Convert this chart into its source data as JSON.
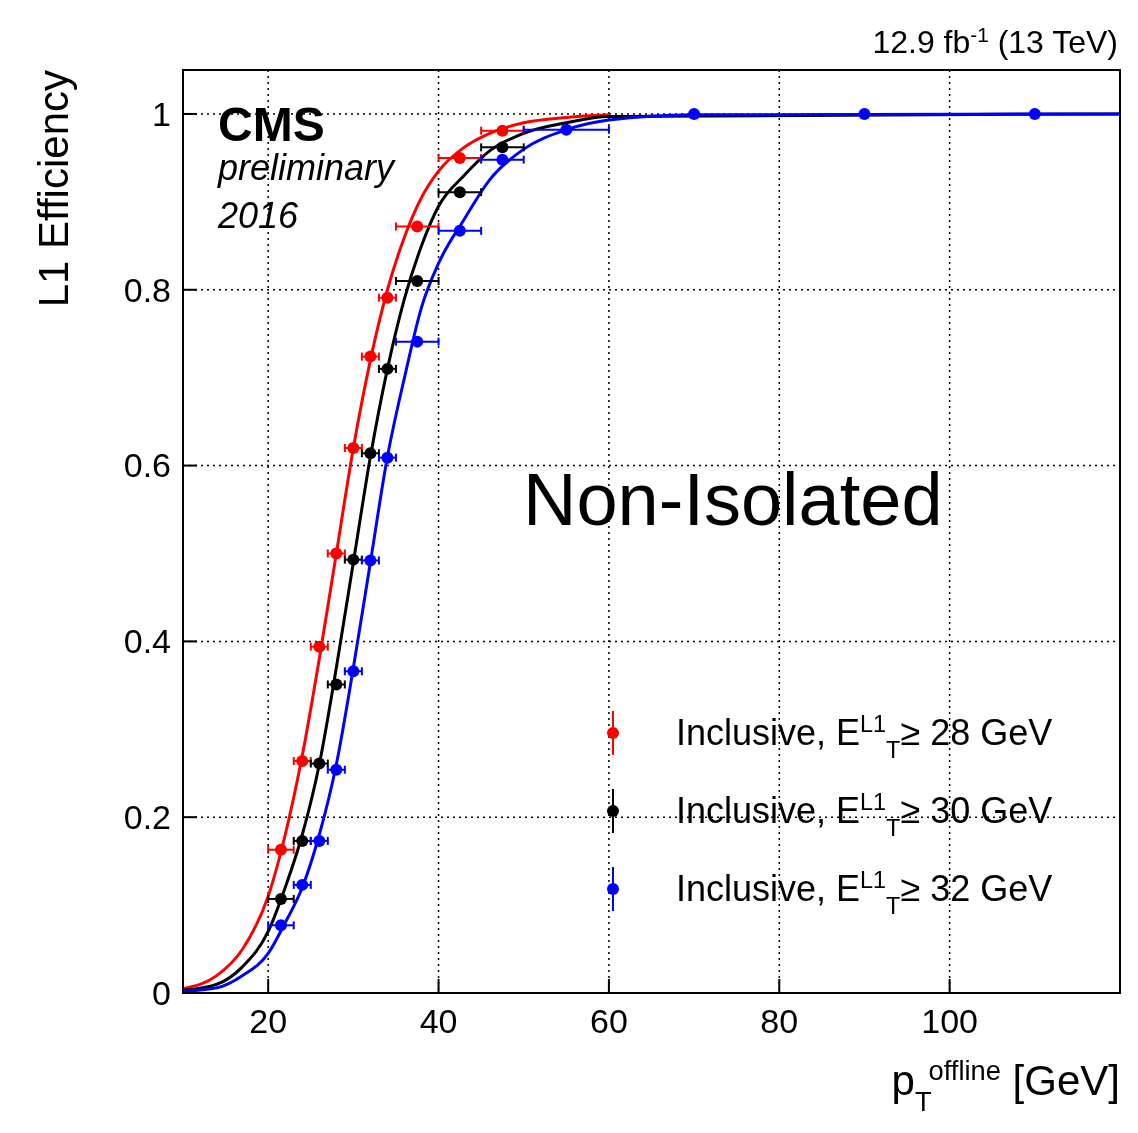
{
  "chart_data": {
    "type": "scatter",
    "title": "12.9 fb$^{-1}$ (13 TeV)",
    "xlabel": "p$_{T}$$^{offline}$ [GeV]",
    "ylabel": "L1 Efficiency",
    "annotations": [
      "CMS",
      "preliminary",
      "2016",
      "Non-Isolated"
    ],
    "xlim": [
      10,
      120
    ],
    "ylim": [
      0,
      1.05
    ],
    "xticks": [
      20,
      40,
      60,
      80,
      100
    ],
    "yticks": [
      0,
      0.2,
      0.4,
      0.6,
      0.8,
      1
    ],
    "grid": true,
    "legend": "bottom right",
    "marker": "circle",
    "line_style": "solid",
    "series": [
      {
        "type": "line",
        "marker": "none",
        "color": "#ff0000",
        "x": [
          10,
          14,
          17,
          20,
          22,
          24,
          26,
          28,
          30,
          32,
          34,
          36,
          38,
          40,
          43,
          46,
          50,
          55,
          60
        ],
        "values": [
          0.005,
          0.02,
          0.05,
          0.11,
          0.18,
          0.27,
          0.38,
          0.5,
          0.62,
          0.72,
          0.8,
          0.86,
          0.905,
          0.935,
          0.962,
          0.978,
          0.99,
          0.996,
          0.999
        ]
      },
      {
        "type": "line",
        "marker": "none",
        "color": "#000000",
        "x": [
          10,
          14,
          17,
          20,
          22,
          24,
          26,
          28,
          30,
          32,
          34,
          36,
          38,
          40,
          43,
          46,
          50,
          55,
          60,
          70,
          120
        ],
        "values": [
          0.003,
          0.01,
          0.03,
          0.07,
          0.12,
          0.18,
          0.26,
          0.37,
          0.49,
          0.61,
          0.71,
          0.79,
          0.85,
          0.895,
          0.93,
          0.958,
          0.978,
          0.99,
          0.997,
          null,
          1
        ]
      },
      {
        "type": "line",
        "marker": "none",
        "color": "#0000ff",
        "x": [
          10,
          14,
          17,
          20,
          22,
          24,
          26,
          28,
          30,
          32,
          34,
          36,
          38,
          40,
          43,
          46,
          50,
          55,
          60,
          70,
          120
        ],
        "values": [
          0.002,
          0.006,
          0.02,
          0.045,
          0.08,
          0.12,
          0.18,
          0.26,
          0.37,
          0.49,
          0.61,
          0.7,
          0.78,
          0.83,
          0.88,
          0.925,
          0.96,
          0.982,
          0.993,
          0.999,
          1
        ]
      },
      {
        "name": "Inclusive, E$^{L1}$$_{T}$≥ 28 GeV",
        "color": "#ff0000",
        "x": [
          21.5,
          24,
          26,
          28,
          30,
          32,
          34,
          37.5,
          42.5,
          47.5
        ],
        "values": [
          0.163,
          0.264,
          0.394,
          0.5,
          0.62,
          0.724,
          0.791,
          0.872,
          0.95,
          0.981
        ],
        "xerrors": [
          1.5,
          1,
          1,
          1,
          1,
          1,
          1,
          2.5,
          2.5,
          2.5
        ]
      },
      {
        "name": "Inclusive, E$^{L1}$$_{T}$≥ 30 GeV",
        "color": "#000000",
        "x": [
          21.5,
          24,
          26,
          28,
          30,
          32,
          34,
          37.5,
          42.5,
          47.5
        ],
        "values": [
          0.107,
          0.173,
          0.261,
          0.351,
          0.493,
          0.614,
          0.71,
          0.81,
          0.911,
          0.962
        ],
        "xerrors": [
          1.5,
          1,
          1,
          1,
          1,
          1,
          1,
          2.5,
          2.5,
          2.5
        ]
      },
      {
        "name": "Inclusive, E$^{L1}$$_{T}$≥ 32 GeV",
        "color": "#0000ff",
        "x": [
          21.5,
          24,
          26,
          28,
          30,
          32,
          34,
          37.5,
          42.5,
          47.5,
          55,
          70,
          90,
          110
        ],
        "values": [
          0.077,
          0.123,
          0.173,
          0.254,
          0.366,
          0.492,
          0.609,
          0.741,
          0.867,
          0.948,
          0.982,
          1,
          1,
          1
        ],
        "xerrors": [
          1.5,
          1,
          1,
          1,
          1,
          1,
          1,
          2.5,
          2.5,
          2.5,
          5,
          null,
          null,
          null
        ]
      }
    ]
  }
}
